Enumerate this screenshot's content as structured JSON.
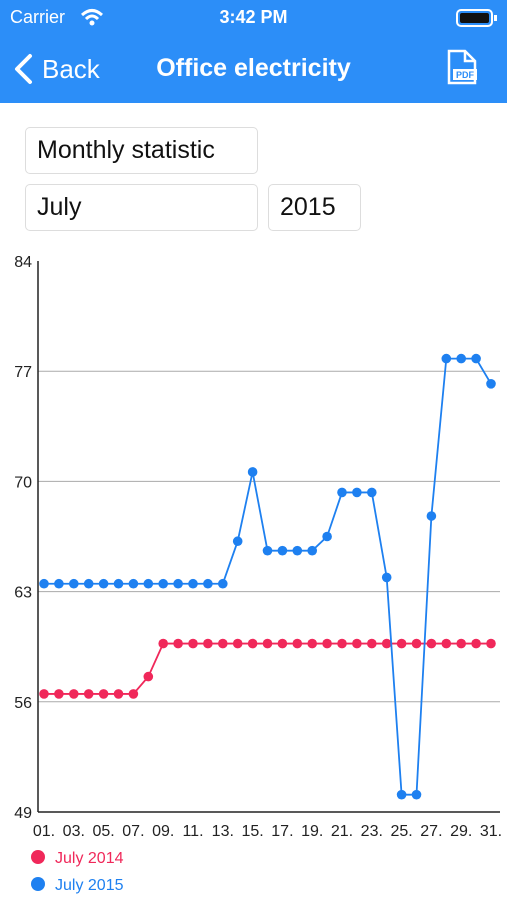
{
  "status_bar": {
    "carrier": "Carrier",
    "time": "3:42 PM"
  },
  "nav": {
    "back": "Back",
    "title": "Office electricity",
    "icon_label": "PDF"
  },
  "form": {
    "period": "Monthly statistic",
    "month": "July",
    "year": "2015"
  },
  "chart_data": {
    "type": "line",
    "categories": [
      "01.",
      null,
      "03.",
      null,
      "05.",
      null,
      "07.",
      null,
      "09.",
      null,
      "11.",
      null,
      "13.",
      null,
      "15.",
      null,
      "17.",
      null,
      "19.",
      null,
      "21.",
      null,
      "23.",
      null,
      "25.",
      null,
      "27.",
      null,
      "29.",
      null,
      "31."
    ],
    "series": [
      {
        "name": "July 2014",
        "color": "#f0285a",
        "values": [
          56.5,
          56.5,
          56.5,
          56.5,
          56.5,
          56.5,
          56.5,
          57.6,
          59.7,
          59.7,
          59.7,
          59.7,
          59.7,
          59.7,
          59.7,
          59.7,
          59.7,
          59.7,
          59.7,
          59.7,
          59.7,
          59.7,
          59.7,
          59.7,
          59.7,
          59.7,
          59.7,
          59.7,
          59.7,
          59.7,
          59.7
        ]
      },
      {
        "name": "July 2015",
        "color": "#1e80f0",
        "values": [
          63.5,
          63.5,
          63.5,
          63.5,
          63.5,
          63.5,
          63.5,
          63.5,
          63.5,
          63.5,
          63.5,
          63.5,
          63.5,
          66.2,
          70.6,
          65.6,
          65.6,
          65.6,
          65.6,
          66.5,
          69.3,
          69.3,
          69.3,
          63.9,
          50.1,
          50.1,
          67.8,
          77.8,
          77.8,
          77.8,
          76.2
        ]
      }
    ],
    "ylim": [
      49,
      84
    ],
    "yticks": [
      49,
      56,
      63,
      70,
      77,
      84
    ],
    "grid": true,
    "legend": "bottom-left"
  }
}
